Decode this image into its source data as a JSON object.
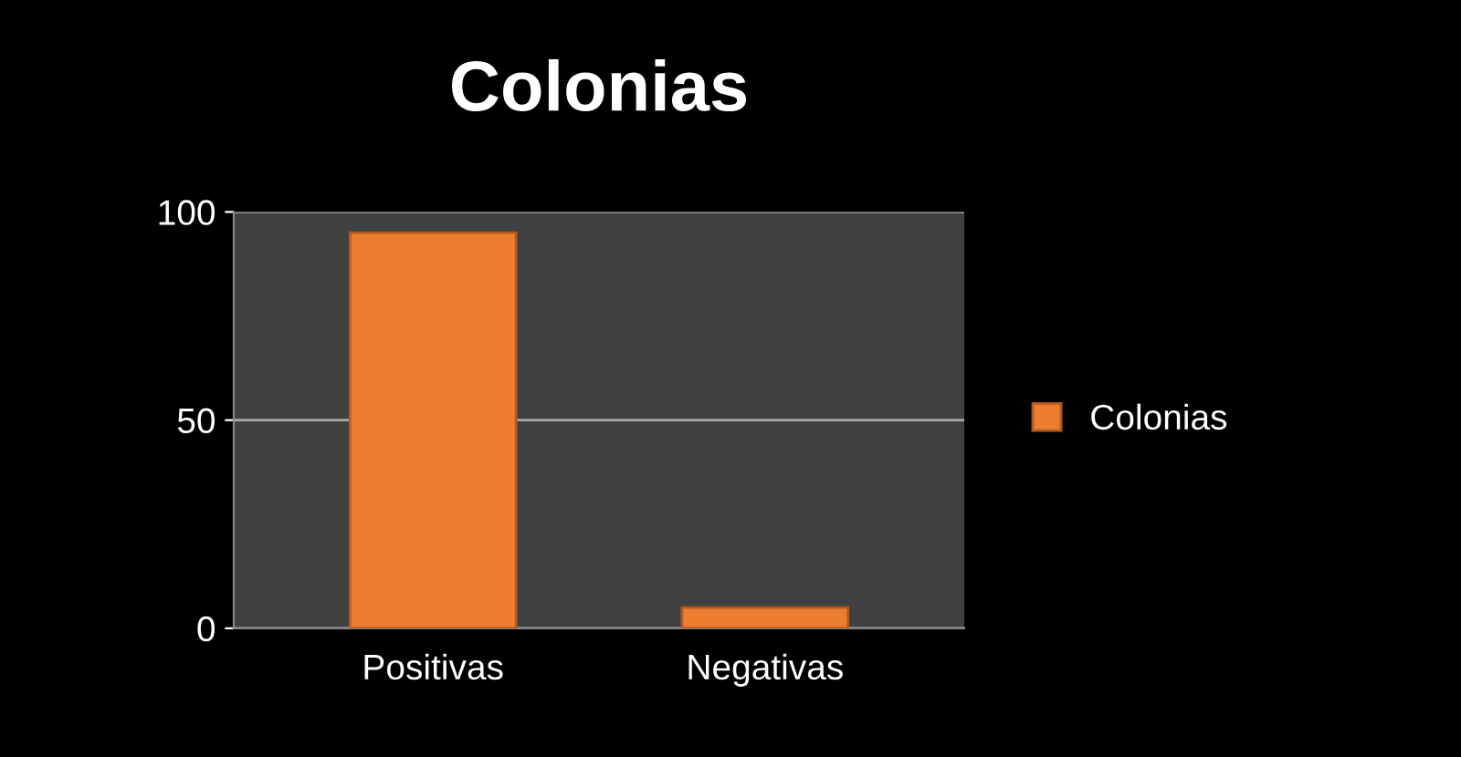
{
  "chart_data": {
    "type": "bar",
    "title": "Colonias",
    "categories": [
      "Positivas",
      "Negativas"
    ],
    "series": [
      {
        "name": "Colonias",
        "color": "#ed7d31",
        "values": [
          95,
          5
        ]
      }
    ],
    "ylim": [
      0,
      100
    ],
    "yticks": [
      0,
      50,
      100
    ],
    "grid": "y",
    "legend": "right"
  }
}
